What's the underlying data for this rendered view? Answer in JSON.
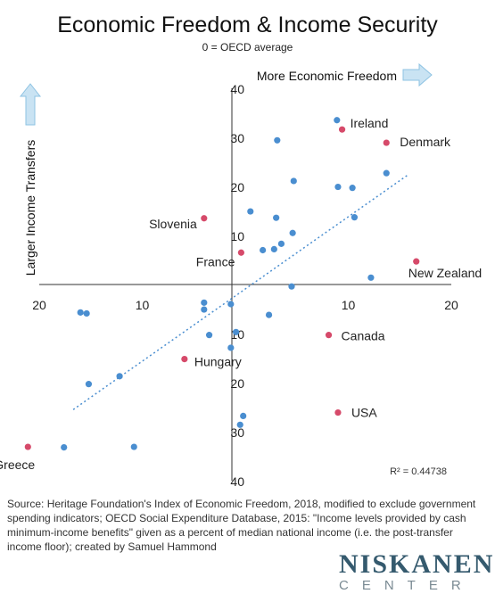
{
  "chart_data": {
    "type": "scatter",
    "title": "Economic Freedom & Income Security",
    "subtitle": "0 = OECD average",
    "xlabel": "More Economic Freedom",
    "ylabel": "Larger Income Transfers",
    "xlim": [
      -20,
      20
    ],
    "ylim": [
      -40,
      40
    ],
    "x_ticks": [
      -20,
      -10,
      10,
      20
    ],
    "x_tick_labels": [
      "20",
      "10",
      "10",
      "20"
    ],
    "y_ticks": [
      40,
      30,
      20,
      10,
      -10,
      -20,
      -30,
      -40
    ],
    "y_tick_labels": [
      "40",
      "30",
      "20",
      "10",
      "10",
      "20",
      "30",
      "40"
    ],
    "r_squared_label": "R² = 0.44738",
    "trendline": {
      "x": [
        -16.7,
        15.9
      ],
      "y": [
        -25.5,
        22.5
      ]
    },
    "colors": {
      "point": "#4a8ed0",
      "highlight": "#d64a6a",
      "trend": "#4a8ed0",
      "arrow_fill": "#c9e3f3",
      "arrow_stroke": "#8ec3e3"
    },
    "labeled_points": [
      {
        "label": "Ireland",
        "x": 9.4,
        "y": 31.6
      },
      {
        "label": "Denmark",
        "x": 13.7,
        "y": 28.9
      },
      {
        "label": "Slovenia",
        "x": -4.0,
        "y": 13.5
      },
      {
        "label": "France",
        "x": -0.4,
        "y": 6.5
      },
      {
        "label": "New Zealand",
        "x": 16.6,
        "y": 4.7
      },
      {
        "label": "Canada",
        "x": 8.1,
        "y": -10.3
      },
      {
        "label": "Hungary",
        "x": -5.9,
        "y": -15.2
      },
      {
        "label": "USA",
        "x": 9.0,
        "y": -26.1
      },
      {
        "label": "Greece",
        "x": -21.1,
        "y": -33.1
      }
    ],
    "points": [
      {
        "x": 8.9,
        "y": 33.5
      },
      {
        "x": 3.1,
        "y": 29.4
      },
      {
        "x": 4.7,
        "y": 21.1
      },
      {
        "x": 9.0,
        "y": 19.9
      },
      {
        "x": 10.4,
        "y": 19.7
      },
      {
        "x": 13.7,
        "y": 22.7
      },
      {
        "x": 10.6,
        "y": 13.7
      },
      {
        "x": 0.5,
        "y": 14.9
      },
      {
        "x": 3.0,
        "y": 13.6
      },
      {
        "x": 4.6,
        "y": 10.5
      },
      {
        "x": 3.5,
        "y": 8.3
      },
      {
        "x": 1.7,
        "y": 7.0
      },
      {
        "x": 2.8,
        "y": 7.2
      },
      {
        "x": 12.2,
        "y": 1.4
      },
      {
        "x": 4.5,
        "y": -0.4
      },
      {
        "x": -16.0,
        "y": -5.7
      },
      {
        "x": -15.4,
        "y": -5.9
      },
      {
        "x": -4.0,
        "y": -3.7
      },
      {
        "x": -4.0,
        "y": -5.1
      },
      {
        "x": -1.4,
        "y": -4.0
      },
      {
        "x": 2.3,
        "y": -6.2
      },
      {
        "x": -3.5,
        "y": -10.3
      },
      {
        "x": -0.9,
        "y": -9.7
      },
      {
        "x": -1.4,
        "y": -12.9
      },
      {
        "x": -12.2,
        "y": -18.7
      },
      {
        "x": -15.2,
        "y": -20.3
      },
      {
        "x": -17.6,
        "y": -33.2
      },
      {
        "x": -10.8,
        "y": -33.1
      },
      {
        "x": -0.2,
        "y": -26.8
      },
      {
        "x": -0.5,
        "y": -28.6
      }
    ]
  },
  "source_text": "Source: Heritage Foundation's Index of Economic Freedom, 2018, modified to exclude government spending indicators; OECD Social Expenditure Database, 2015: \"Income levels provided by cash minimum-income benefits\" given as a percent of median national income (i.e. the post-transfer income floor); created by Samuel Hammond",
  "logo": {
    "line1": "NISKANEN",
    "line2": "CENTER"
  }
}
